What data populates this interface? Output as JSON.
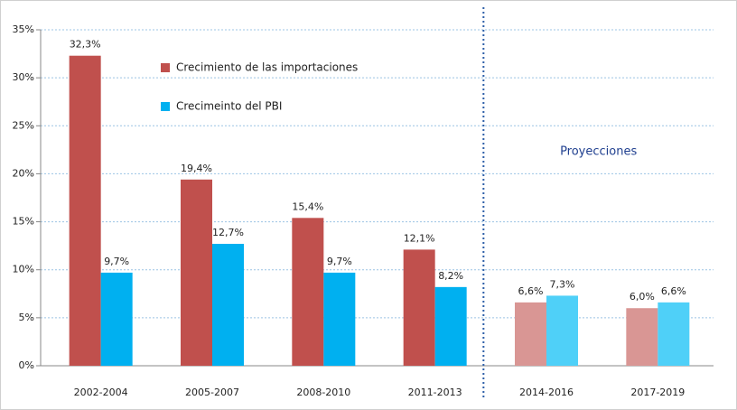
{
  "chart_data": {
    "type": "bar",
    "categories": [
      "2002-2004",
      "2005-2007",
      "2008-2010",
      "2011-2013",
      "2014-2016",
      "2017-2019"
    ],
    "series": [
      {
        "name": "Crecimiento de las importaciones",
        "color": "#c0504d",
        "colors": [
          "#c0504d",
          "#c0504d",
          "#c0504d",
          "#c0504d",
          "#d99694",
          "#d99694"
        ],
        "values": [
          32.3,
          19.4,
          15.4,
          12.1,
          6.6,
          6.0
        ],
        "value_labels": [
          "32,3%",
          "19,4%",
          "15,4%",
          "12,1%",
          "6,6%",
          "6,0%"
        ]
      },
      {
        "name": "Crecimeinto del PBI",
        "color": "#00b0f0",
        "colors": [
          "#00b0f0",
          "#00b0f0",
          "#00b0f0",
          "#00b0f0",
          "#4fd0f8",
          "#4fd0f8"
        ],
        "values": [
          9.7,
          12.7,
          9.7,
          8.2,
          7.3,
          6.6
        ],
        "value_labels": [
          "9,7%",
          "12,7%",
          "9,7%",
          "8,2%",
          "7,3%",
          "6,6%"
        ]
      }
    ],
    "ylim": [
      0,
      35
    ],
    "yticks": [
      {
        "value": 0,
        "label": "0%"
      },
      {
        "value": 5,
        "label": "5%"
      },
      {
        "value": 10,
        "label": "10%"
      },
      {
        "value": 15,
        "label": "15%"
      },
      {
        "value": 20,
        "label": "20%"
      },
      {
        "value": 25,
        "label": "25%"
      },
      {
        "value": 30,
        "label": "30%"
      },
      {
        "value": 35,
        "label": "35%"
      }
    ],
    "grid": true,
    "projection": {
      "label": "Proyecciones",
      "start": "2014-2016"
    }
  }
}
